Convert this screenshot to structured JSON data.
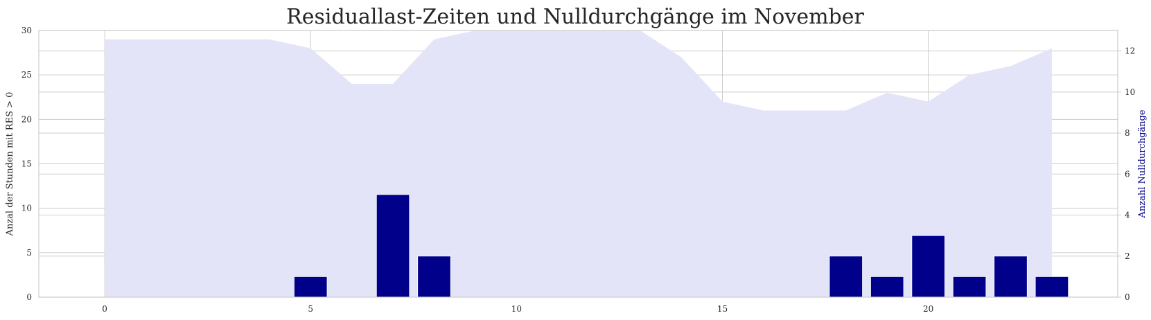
{
  "chart_data": {
    "type": "bar",
    "title": "Residuallast-Zeiten und Nulldurchgänge im November",
    "xlabel": "",
    "xlim": [
      -1.6,
      24.6
    ],
    "x_ticks": [
      "0",
      "5",
      "10",
      "15",
      "20"
    ],
    "area": {
      "axis": "left",
      "ylabel": "Anzal der Stunden mit RES > 0",
      "ylim": [
        0,
        30
      ],
      "y_ticks": [
        "0",
        "5",
        "10",
        "15",
        "20",
        "25",
        "30"
      ],
      "color": "#e4e4f8",
      "x": [
        0,
        1,
        2,
        3,
        4,
        5,
        6,
        7,
        8,
        9,
        10,
        11,
        12,
        13,
        14,
        15,
        16,
        17,
        18,
        19,
        20,
        21,
        22,
        23
      ],
      "values": [
        29,
        29,
        29,
        29,
        29,
        28,
        24,
        24,
        29,
        31,
        31,
        31,
        31,
        31,
        27,
        22,
        21,
        21,
        21,
        23,
        22,
        25,
        26,
        28
      ]
    },
    "bars": {
      "axis": "right",
      "ylabel": "Anzahl Nulldurchgänge",
      "ylim": [
        0,
        13
      ],
      "y_ticks": [
        "0",
        "2",
        "4",
        "6",
        "8",
        "10",
        "12"
      ],
      "color": "#00008b",
      "x": [
        5,
        7,
        8,
        18,
        19,
        20,
        21,
        22,
        23
      ],
      "values": [
        1,
        5,
        2,
        2,
        1,
        3,
        1,
        2,
        1
      ]
    },
    "grid": true
  }
}
